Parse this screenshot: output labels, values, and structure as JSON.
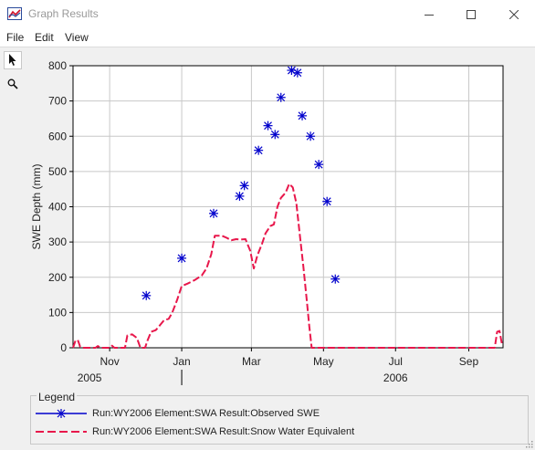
{
  "window": {
    "title": "Graph Results"
  },
  "menu": [
    "File",
    "Edit",
    "View"
  ],
  "tools": [
    {
      "name": "pointer-tool",
      "icon": "arrow-pointer-icon"
    },
    {
      "name": "zoom-tool",
      "icon": "magnifier-icon"
    }
  ],
  "colors": {
    "observed": "#0000cc",
    "simulated": "#e8174b",
    "grid": "#c8c8c8"
  },
  "chart_data": {
    "type": "line",
    "ylabel": "SWE Depth (mm)",
    "xlabel": "",
    "ylim": [
      0,
      800
    ],
    "yticks": [
      0,
      100,
      200,
      300,
      400,
      500,
      600,
      700,
      800
    ],
    "xlim": [
      "2005-10-01",
      "2006-09-30"
    ],
    "xticks": [
      {
        "date": "2005-11-01",
        "label": "Nov"
      },
      {
        "date": "2006-01-01",
        "label": "Jan"
      },
      {
        "date": "2006-03-01",
        "label": "Mar"
      },
      {
        "date": "2006-05-01",
        "label": "May"
      },
      {
        "date": "2006-07-01",
        "label": "Jul"
      },
      {
        "date": "2006-09-01",
        "label": "Sep"
      }
    ],
    "year_labels": [
      {
        "date": "2005-10-15",
        "label": "2005"
      },
      {
        "date": "2006-07-01",
        "label": "2006"
      }
    ],
    "year_divider": "2006-01-01",
    "grid": true,
    "legend_position": "bottom",
    "series": [
      {
        "name": "Run:WY2006 Element:SWA Result:Observed SWE",
        "style": "markers",
        "points": [
          [
            "2005-12-02",
            148
          ],
          [
            "2006-01-01",
            254
          ],
          [
            "2006-01-28",
            381
          ],
          [
            "2006-02-19",
            430
          ],
          [
            "2006-02-23",
            460
          ],
          [
            "2006-03-07",
            560
          ],
          [
            "2006-03-15",
            630
          ],
          [
            "2006-03-21",
            605
          ],
          [
            "2006-03-26",
            710
          ],
          [
            "2006-04-04",
            787
          ],
          [
            "2006-04-09",
            780
          ],
          [
            "2006-04-13",
            658
          ],
          [
            "2006-04-20",
            600
          ],
          [
            "2006-04-27",
            520
          ],
          [
            "2006-05-04",
            415
          ],
          [
            "2006-05-11",
            195
          ]
        ]
      },
      {
        "name": "Run:WY2006 Element:SWA Result:Snow Water Equivalent",
        "style": "dashed",
        "points": [
          [
            "2005-10-01",
            0
          ],
          [
            "2005-10-03",
            20
          ],
          [
            "2005-10-05",
            22
          ],
          [
            "2005-10-07",
            3
          ],
          [
            "2005-10-09",
            0
          ],
          [
            "2005-10-20",
            0
          ],
          [
            "2005-10-22",
            5
          ],
          [
            "2005-10-24",
            0
          ],
          [
            "2005-11-01",
            0
          ],
          [
            "2005-11-03",
            6
          ],
          [
            "2005-11-05",
            0
          ],
          [
            "2005-11-14",
            0
          ],
          [
            "2005-11-16",
            35
          ],
          [
            "2005-11-20",
            38
          ],
          [
            "2005-11-24",
            28
          ],
          [
            "2005-11-27",
            0
          ],
          [
            "2005-12-01",
            0
          ],
          [
            "2005-12-03",
            20
          ],
          [
            "2005-12-06",
            45
          ],
          [
            "2005-12-10",
            50
          ],
          [
            "2005-12-13",
            62
          ],
          [
            "2005-12-17",
            78
          ],
          [
            "2005-12-21",
            82
          ],
          [
            "2005-12-24",
            100
          ],
          [
            "2005-12-28",
            135
          ],
          [
            "2006-01-01",
            175
          ],
          [
            "2006-01-06",
            182
          ],
          [
            "2006-01-12",
            192
          ],
          [
            "2006-01-18",
            205
          ],
          [
            "2006-01-22",
            225
          ],
          [
            "2006-01-26",
            265
          ],
          [
            "2006-01-29",
            318
          ],
          [
            "2006-02-04",
            318
          ],
          [
            "2006-02-08",
            312
          ],
          [
            "2006-02-12",
            305
          ],
          [
            "2006-02-16",
            308
          ],
          [
            "2006-02-20",
            307
          ],
          [
            "2006-02-24",
            308
          ],
          [
            "2006-02-28",
            275
          ],
          [
            "2006-03-03",
            225
          ],
          [
            "2006-03-06",
            262
          ],
          [
            "2006-03-10",
            295
          ],
          [
            "2006-03-13",
            325
          ],
          [
            "2006-03-17",
            345
          ],
          [
            "2006-03-20",
            350
          ],
          [
            "2006-03-23",
            400
          ],
          [
            "2006-03-26",
            425
          ],
          [
            "2006-03-30",
            440
          ],
          [
            "2006-04-02",
            465
          ],
          [
            "2006-04-05",
            455
          ],
          [
            "2006-04-08",
            410
          ],
          [
            "2006-04-11",
            320
          ],
          [
            "2006-04-14",
            230
          ],
          [
            "2006-04-17",
            130
          ],
          [
            "2006-04-19",
            60
          ],
          [
            "2006-04-21",
            0
          ],
          [
            "2006-09-23",
            0
          ],
          [
            "2006-09-25",
            45
          ],
          [
            "2006-09-27",
            48
          ],
          [
            "2006-09-29",
            12
          ]
        ]
      }
    ]
  }
}
